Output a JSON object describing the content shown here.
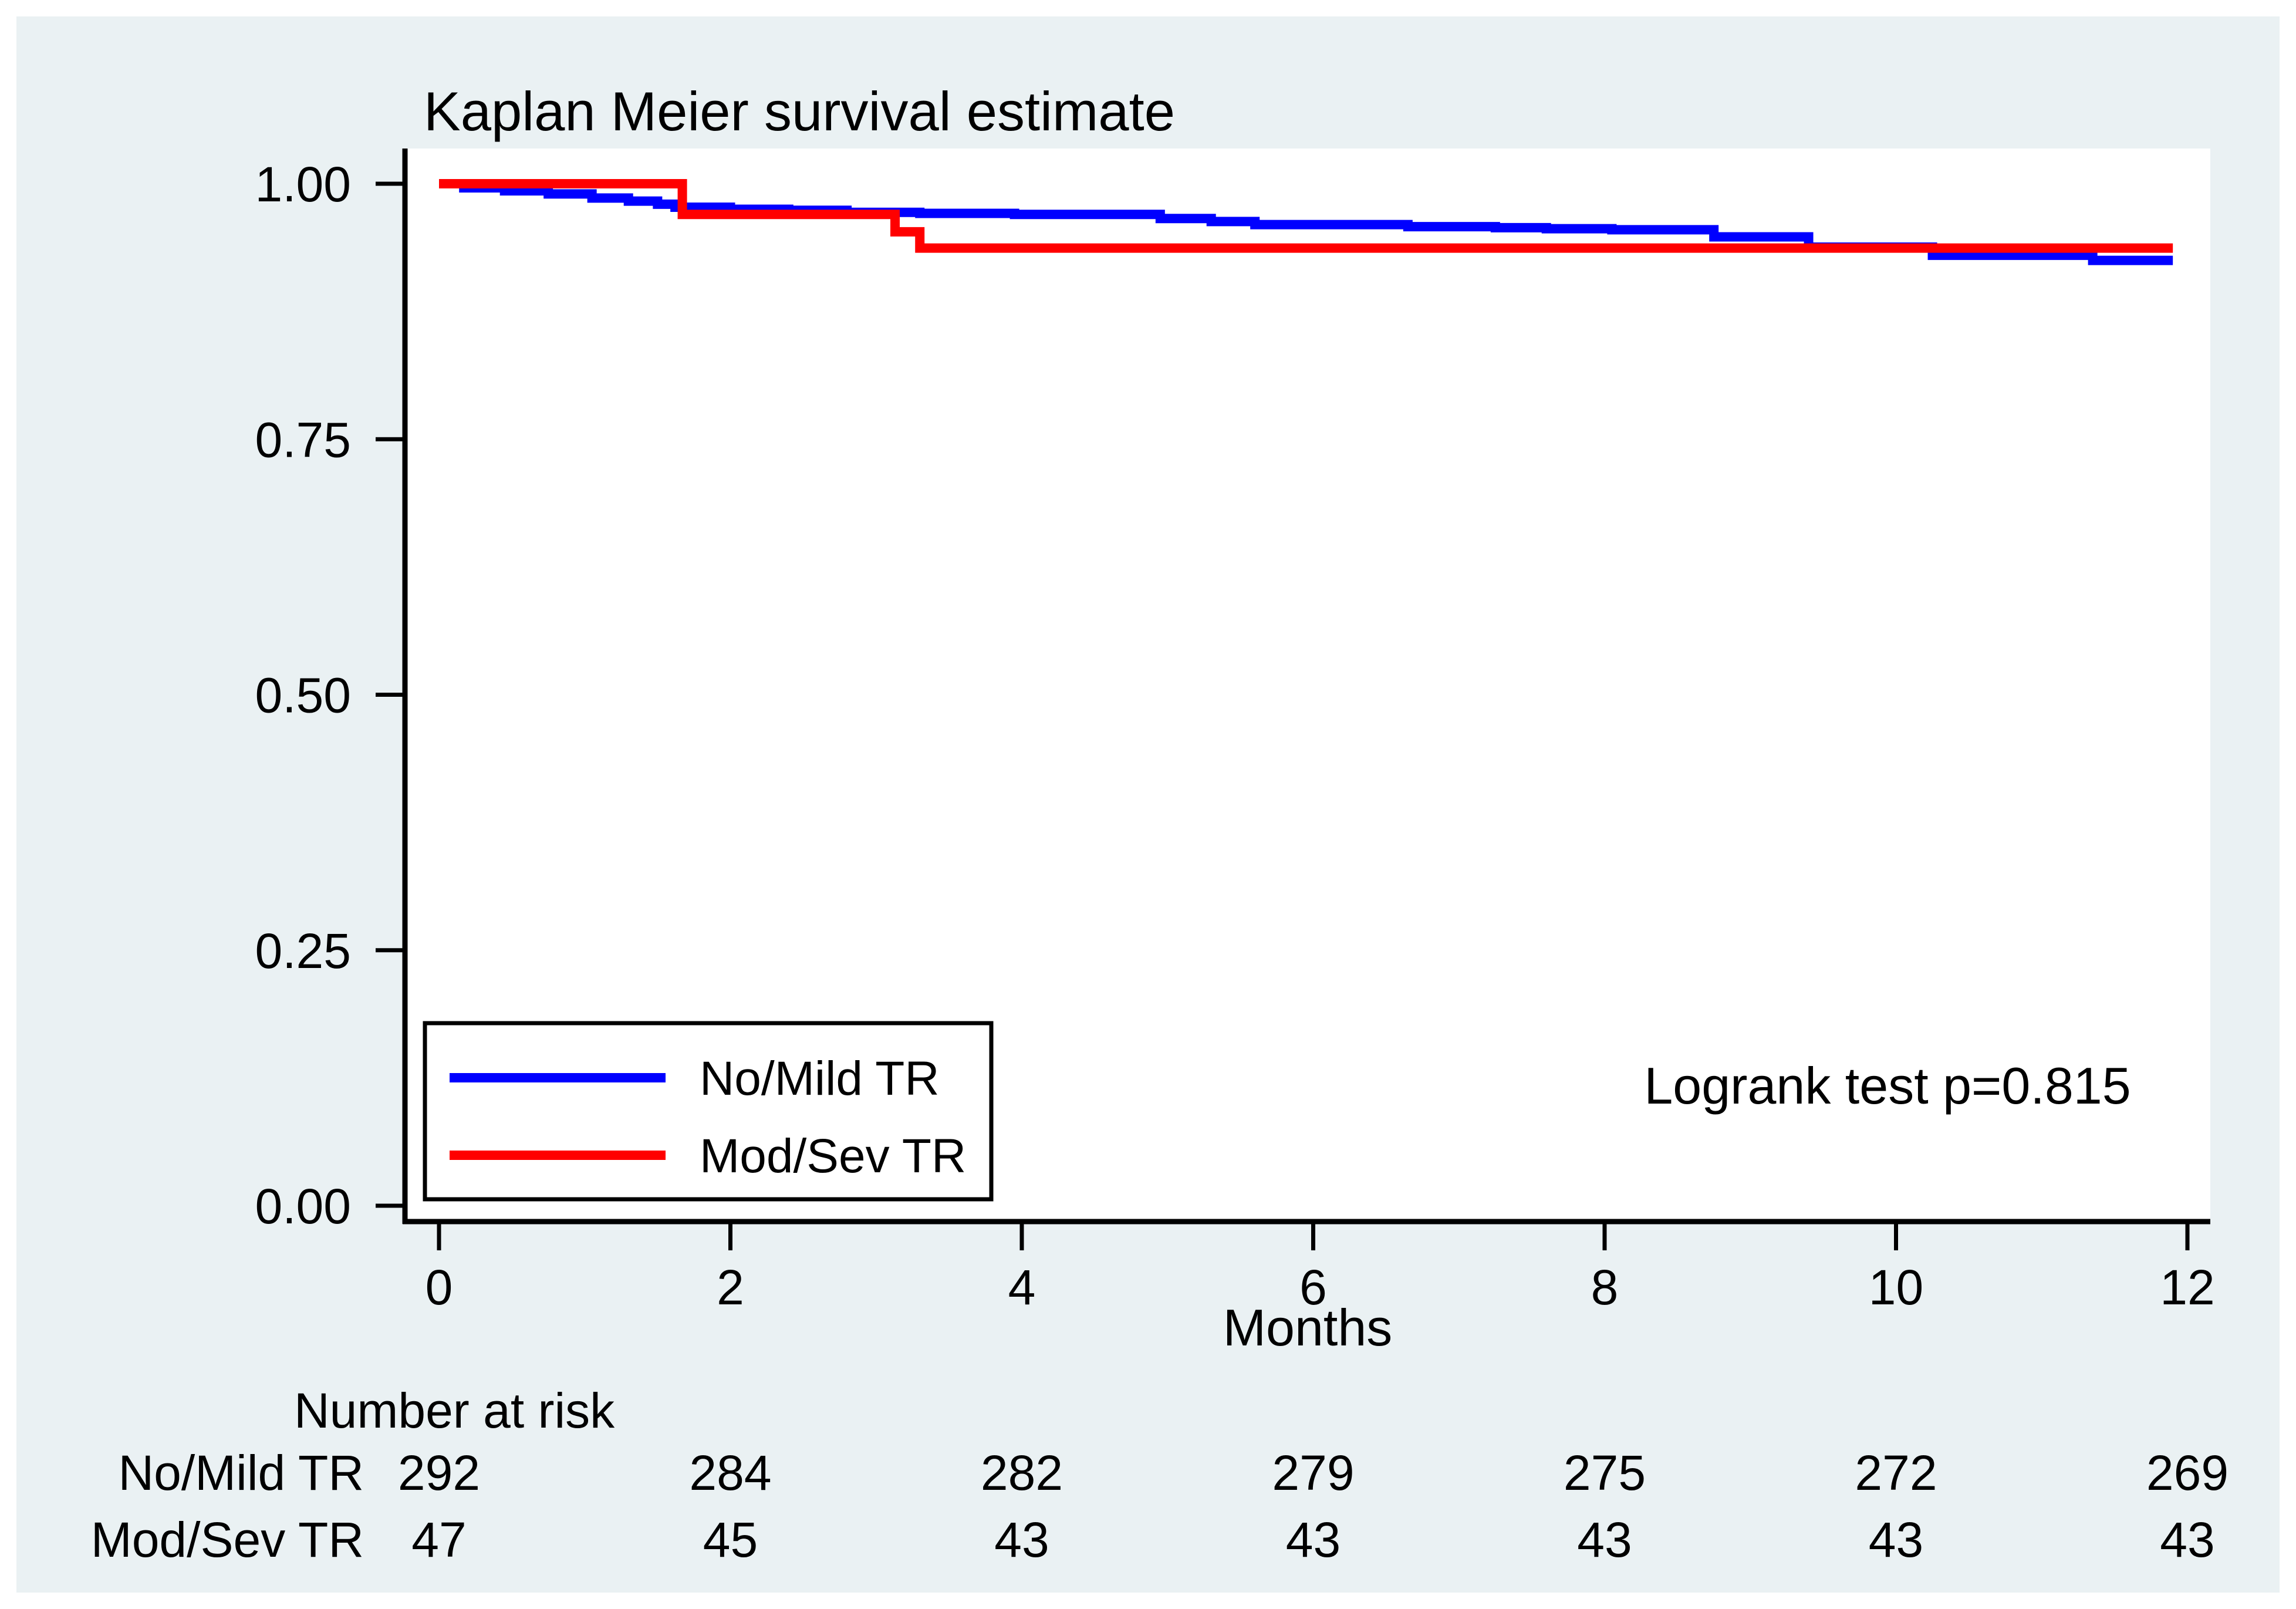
{
  "title": "Kaplan Meier survival estimate",
  "annotation": "Logrank test p=0.815",
  "x_axis_label": "Months",
  "colors": {
    "graph_background": "#eaf1f3",
    "plot_background": "#ffffff",
    "outer_border": "#ffffff",
    "title_color": "#1c3461",
    "axis_color": "#000000",
    "text_color": "#000000",
    "no_mild_tr_color": "#0000ff",
    "mod_sev_tr_color": "#ff0000"
  },
  "legend": {
    "items": [
      {
        "label": "No/Mild TR",
        "color": "#0000ff"
      },
      {
        "label": "Mod/Sev TR",
        "color": "#ff0000"
      }
    ]
  },
  "risk_table": {
    "header": "Number at risk",
    "timepoints": [
      0,
      2,
      4,
      6,
      8,
      10,
      12
    ],
    "rows": [
      {
        "label": "No/Mild TR",
        "values": [
          "292",
          "284",
          "282",
          "279",
          "275",
          "272",
          "269"
        ]
      },
      {
        "label": "Mod/Sev TR",
        "values": [
          "47",
          "45",
          "43",
          "43",
          "43",
          "43",
          "43"
        ]
      }
    ]
  },
  "chart_data": {
    "type": "line",
    "subtype": "kaplan-meier-step",
    "title": "Kaplan Meier survival estimate",
    "xlabel": "Months",
    "ylabel": "",
    "xlim": [
      0,
      12
    ],
    "ylim": [
      0.0,
      1.0
    ],
    "grid": false,
    "legend_position": "lower-left-inside",
    "xticks": [
      {
        "value": 0,
        "label": "0"
      },
      {
        "value": 2,
        "label": "2"
      },
      {
        "value": 4,
        "label": "4"
      },
      {
        "value": 6,
        "label": "6"
      },
      {
        "value": 8,
        "label": "8"
      },
      {
        "value": 10,
        "label": "10"
      },
      {
        "value": 12,
        "label": "12"
      }
    ],
    "yticks": [
      {
        "value": 1.0,
        "label": "1.00"
      },
      {
        "value": 0.75,
        "label": "0.75"
      },
      {
        "value": 0.5,
        "label": "0.50"
      },
      {
        "value": 0.25,
        "label": "0.25"
      },
      {
        "value": 0.0,
        "label": "0.00"
      }
    ],
    "series": [
      {
        "name": "No/Mild TR",
        "color": "#0000ff",
        "step": true,
        "points": [
          [
            0,
            1.0
          ],
          [
            0.17,
            0.996
          ],
          [
            0.45,
            0.993
          ],
          [
            0.75,
            0.99
          ],
          [
            1.05,
            0.986
          ],
          [
            1.3,
            0.983
          ],
          [
            1.5,
            0.98
          ],
          [
            1.62,
            0.977
          ],
          [
            2.0,
            0.975
          ],
          [
            2.4,
            0.974
          ],
          [
            2.8,
            0.972
          ],
          [
            3.3,
            0.971
          ],
          [
            3.95,
            0.97
          ],
          [
            4.95,
            0.966
          ],
          [
            5.3,
            0.963
          ],
          [
            5.6,
            0.96
          ],
          [
            6.65,
            0.958
          ],
          [
            7.25,
            0.957
          ],
          [
            7.6,
            0.956
          ],
          [
            8.05,
            0.955
          ],
          [
            8.75,
            0.948
          ],
          [
            9.4,
            0.938
          ],
          [
            10.25,
            0.93
          ],
          [
            11.35,
            0.925
          ],
          [
            11.9,
            0.925
          ]
        ]
      },
      {
        "name": "Mod/Sev TR",
        "color": "#ff0000",
        "step": true,
        "points": [
          [
            0,
            1.0
          ],
          [
            1.67,
            0.97
          ],
          [
            3.13,
            0.953
          ],
          [
            3.3,
            0.937
          ],
          [
            11.9,
            0.937
          ]
        ]
      }
    ],
    "annotations": [
      {
        "text": "Logrank test p=0.815",
        "x": 9.9,
        "y": 0.1
      }
    ]
  }
}
